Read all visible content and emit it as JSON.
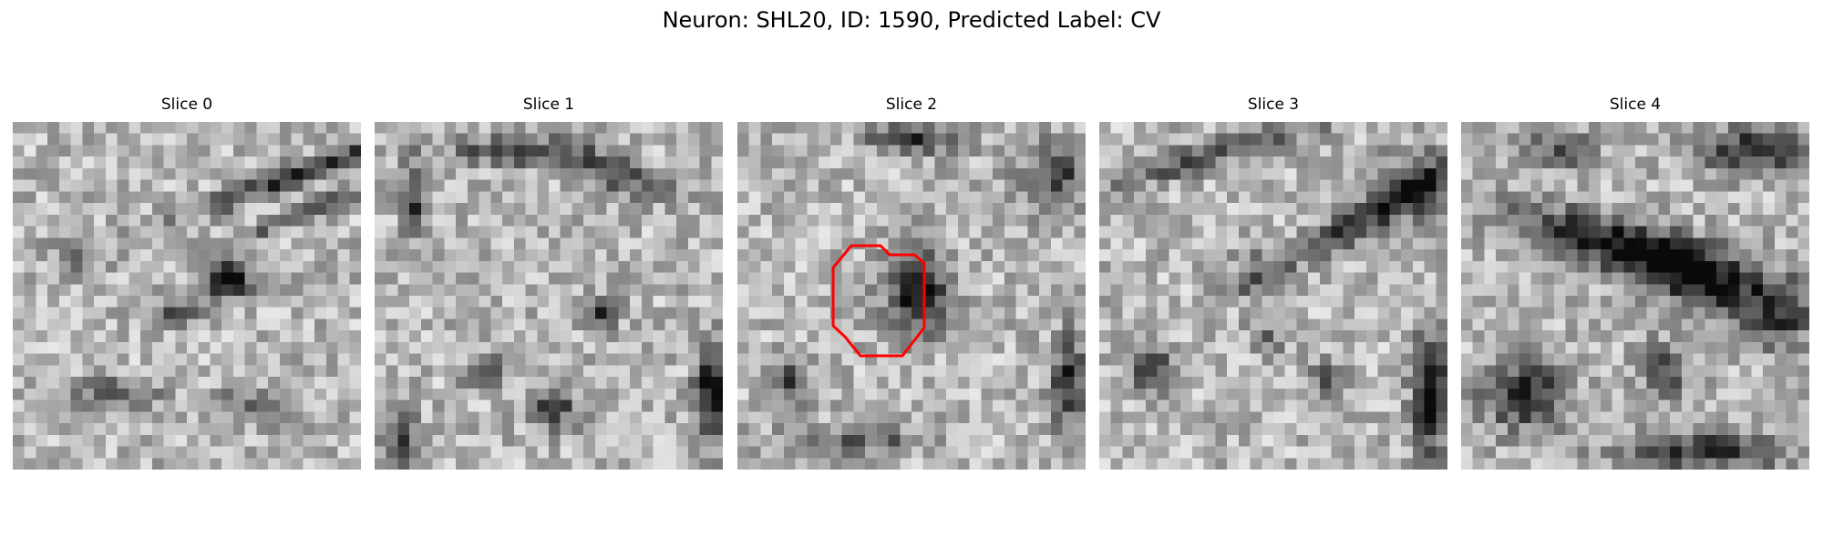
{
  "figure": {
    "title": "Neuron: SHL20, ID: 1590, Predicted Label: CV"
  },
  "panels": [
    {
      "title": "Slice 0",
      "seed": 11,
      "blobs": "s0"
    },
    {
      "title": "Slice 1",
      "seed": 23,
      "blobs": "s1"
    },
    {
      "title": "Slice 2",
      "seed": 37,
      "blobs": "s2"
    },
    {
      "title": "Slice 3",
      "seed": 41,
      "blobs": "s3"
    },
    {
      "title": "Slice 4",
      "seed": 53,
      "blobs": "s4"
    }
  ],
  "annotation": {
    "panel": "Slice 2",
    "shape": "octagon",
    "color": "#ff0000"
  },
  "colors": {
    "colormap": "gray",
    "contour": "#ff0000"
  }
}
